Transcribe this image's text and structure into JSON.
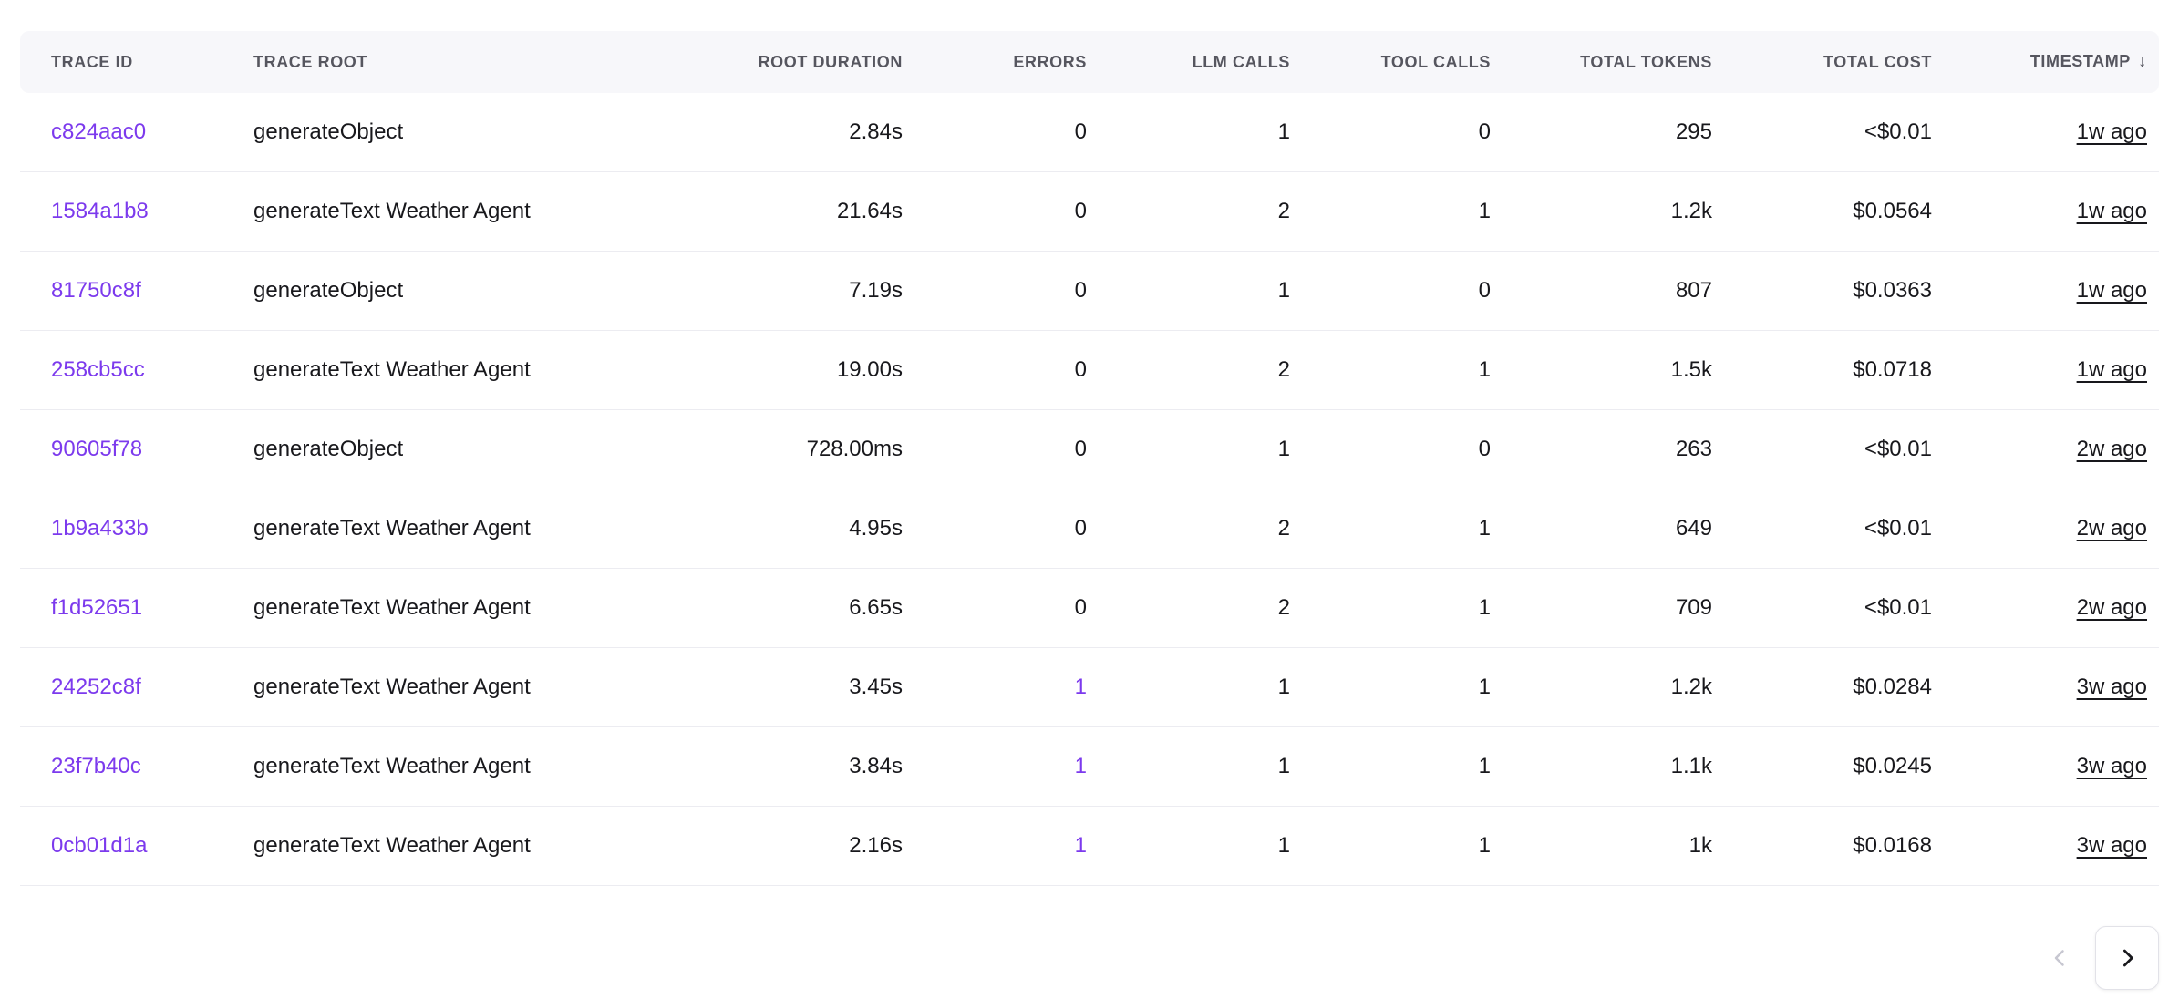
{
  "colors": {
    "link_purple": "#7c3aed",
    "error_purple": "#7c3aed",
    "header_background": "#f7f7fa",
    "row_border": "#ececf1",
    "header_text": "#56565f",
    "body_text": "#18181c"
  },
  "table": {
    "sort_indicator": "↓",
    "columns": [
      {
        "key": "trace_id",
        "label": "TRACE ID",
        "align": "left"
      },
      {
        "key": "trace_root",
        "label": "TRACE ROOT",
        "align": "left"
      },
      {
        "key": "root_duration",
        "label": "ROOT DURATION",
        "align": "right"
      },
      {
        "key": "errors",
        "label": "ERRORS",
        "align": "right"
      },
      {
        "key": "llm_calls",
        "label": "LLM CALLS",
        "align": "right"
      },
      {
        "key": "tool_calls",
        "label": "TOOL CALLS",
        "align": "right"
      },
      {
        "key": "total_tokens",
        "label": "TOTAL TOKENS",
        "align": "right"
      },
      {
        "key": "total_cost",
        "label": "TOTAL COST",
        "align": "right"
      },
      {
        "key": "timestamp",
        "label": "TIMESTAMP",
        "align": "right",
        "sort": "desc"
      }
    ],
    "rows": [
      {
        "trace_id": "c824aac0",
        "trace_root": "generateObject",
        "root_duration": "2.84s",
        "errors": "0",
        "llm_calls": "1",
        "tool_calls": "0",
        "total_tokens": "295",
        "total_cost": "<$0.01",
        "timestamp": "1w ago"
      },
      {
        "trace_id": "1584a1b8",
        "trace_root": "generateText Weather Agent",
        "root_duration": "21.64s",
        "errors": "0",
        "llm_calls": "2",
        "tool_calls": "1",
        "total_tokens": "1.2k",
        "total_cost": "$0.0564",
        "timestamp": "1w ago"
      },
      {
        "trace_id": "81750c8f",
        "trace_root": "generateObject",
        "root_duration": "7.19s",
        "errors": "0",
        "llm_calls": "1",
        "tool_calls": "0",
        "total_tokens": "807",
        "total_cost": "$0.0363",
        "timestamp": "1w ago"
      },
      {
        "trace_id": "258cb5cc",
        "trace_root": "generateText Weather Agent",
        "root_duration": "19.00s",
        "errors": "0",
        "llm_calls": "2",
        "tool_calls": "1",
        "total_tokens": "1.5k",
        "total_cost": "$0.0718",
        "timestamp": "1w ago"
      },
      {
        "trace_id": "90605f78",
        "trace_root": "generateObject",
        "root_duration": "728.00ms",
        "errors": "0",
        "llm_calls": "1",
        "tool_calls": "0",
        "total_tokens": "263",
        "total_cost": "<$0.01",
        "timestamp": "2w ago"
      },
      {
        "trace_id": "1b9a433b",
        "trace_root": "generateText Weather Agent",
        "root_duration": "4.95s",
        "errors": "0",
        "llm_calls": "2",
        "tool_calls": "1",
        "total_tokens": "649",
        "total_cost": "<$0.01",
        "timestamp": "2w ago"
      },
      {
        "trace_id": "f1d52651",
        "trace_root": "generateText Weather Agent",
        "root_duration": "6.65s",
        "errors": "0",
        "llm_calls": "2",
        "tool_calls": "1",
        "total_tokens": "709",
        "total_cost": "<$0.01",
        "timestamp": "2w ago"
      },
      {
        "trace_id": "24252c8f",
        "trace_root": "generateText Weather Agent",
        "root_duration": "3.45s",
        "errors": "1",
        "llm_calls": "1",
        "tool_calls": "1",
        "total_tokens": "1.2k",
        "total_cost": "$0.0284",
        "timestamp": "3w ago"
      },
      {
        "trace_id": "23f7b40c",
        "trace_root": "generateText Weather Agent",
        "root_duration": "3.84s",
        "errors": "1",
        "llm_calls": "1",
        "tool_calls": "1",
        "total_tokens": "1.1k",
        "total_cost": "$0.0245",
        "timestamp": "3w ago"
      },
      {
        "trace_id": "0cb01d1a",
        "trace_root": "generateText Weather Agent",
        "root_duration": "2.16s",
        "errors": "1",
        "llm_calls": "1",
        "tool_calls": "1",
        "total_tokens": "1k",
        "total_cost": "$0.0168",
        "timestamp": "3w ago"
      }
    ]
  },
  "pagination": {
    "prev_icon": "chevron-left",
    "next_icon": "chevron-right",
    "prev_disabled": true
  }
}
